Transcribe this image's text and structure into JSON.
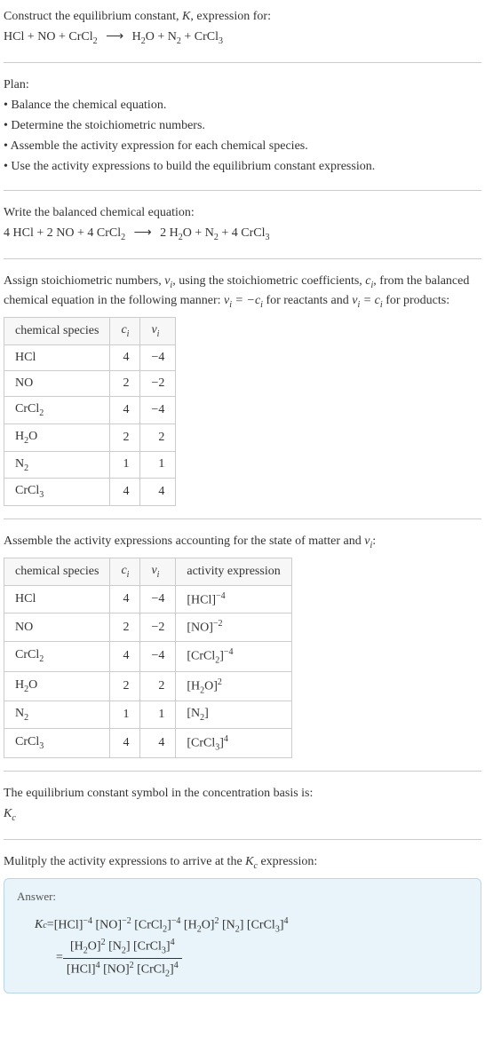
{
  "intro": {
    "title_line1": "Construct the equilibrium constant, ",
    "title_k": "K",
    "title_line1b": ", expression for:",
    "equation_lhs": "HCl + NO + CrCl",
    "equation_lhs_sub": "2",
    "equation_rhs_a": "H",
    "equation_rhs_a_sub": "2",
    "equation_rhs_b": "O + N",
    "equation_rhs_b_sub": "2",
    "equation_rhs_c": " + CrCl",
    "equation_rhs_c_sub": "3"
  },
  "plan": {
    "heading": "Plan:",
    "bullets": [
      "• Balance the chemical equation.",
      "• Determine the stoichiometric numbers.",
      "• Assemble the activity expression for each chemical species.",
      "• Use the activity expressions to build the equilibrium constant expression."
    ]
  },
  "balanced": {
    "heading": "Write the balanced chemical equation:",
    "lhs_a": "4 HCl + 2 NO + 4 CrCl",
    "lhs_sub": "2",
    "rhs_a": "2 H",
    "rhs_a_sub": "2",
    "rhs_b": "O + N",
    "rhs_b_sub": "2",
    "rhs_c": " + 4 CrCl",
    "rhs_c_sub": "3"
  },
  "stoich": {
    "text_a": "Assign stoichiometric numbers, ",
    "nu": "ν",
    "sub_i": "i",
    "text_b": ", using the stoichiometric coefficients, ",
    "c": "c",
    "text_c": ", from the balanced chemical equation in the following manner: ",
    "eq1_l": "ν",
    "eq1_r": " = −c",
    "text_d": " for reactants and ",
    "eq2_l": "ν",
    "eq2_r": " = c",
    "text_e": " for products:",
    "table": {
      "headers": [
        "chemical species",
        "c",
        "ν"
      ],
      "header_sub": "i",
      "rows": [
        {
          "species": "HCl",
          "species_sub": "",
          "c": "4",
          "nu": "−4"
        },
        {
          "species": "NO",
          "species_sub": "",
          "c": "2",
          "nu": "−2"
        },
        {
          "species": "CrCl",
          "species_sub": "2",
          "c": "4",
          "nu": "−4"
        },
        {
          "species": "H",
          "species_sub": "2",
          "species_b": "O",
          "c": "2",
          "nu": "2"
        },
        {
          "species": "N",
          "species_sub": "2",
          "c": "1",
          "nu": "1"
        },
        {
          "species": "CrCl",
          "species_sub": "3",
          "c": "4",
          "nu": "4"
        }
      ]
    }
  },
  "activity": {
    "text_a": "Assemble the activity expressions accounting for the state of matter and ",
    "nu": "ν",
    "sub_i": "i",
    "text_b": ":",
    "table": {
      "headers": [
        "chemical species",
        "c",
        "ν",
        "activity expression"
      ],
      "header_sub": "i",
      "rows": [
        {
          "species": "HCl",
          "species_sub": "",
          "c": "4",
          "nu": "−4",
          "act": "[HCl]",
          "act_sup": "−4"
        },
        {
          "species": "NO",
          "species_sub": "",
          "c": "2",
          "nu": "−2",
          "act": "[NO]",
          "act_sup": "−2"
        },
        {
          "species": "CrCl",
          "species_sub": "2",
          "c": "4",
          "nu": "−4",
          "act": "[CrCl",
          "act_sub": "2",
          "act_b": "]",
          "act_sup": "−4"
        },
        {
          "species": "H",
          "species_sub": "2",
          "species_b": "O",
          "c": "2",
          "nu": "2",
          "act": "[H",
          "act_sub": "2",
          "act_b": "O]",
          "act_sup": "2"
        },
        {
          "species": "N",
          "species_sub": "2",
          "c": "1",
          "nu": "1",
          "act": "[N",
          "act_sub": "2",
          "act_b": "]",
          "act_sup": ""
        },
        {
          "species": "CrCl",
          "species_sub": "3",
          "c": "4",
          "nu": "4",
          "act": "[CrCl",
          "act_sub": "3",
          "act_b": "]",
          "act_sup": "4"
        }
      ]
    }
  },
  "symbol": {
    "text": "The equilibrium constant symbol in the concentration basis is:",
    "kc": "K",
    "kc_sub": "c"
  },
  "multiply": {
    "text_a": "Mulitply the activity expressions to arrive at the ",
    "kc": "K",
    "kc_sub": "c",
    "text_b": " expression:"
  },
  "answer": {
    "label": "Answer:",
    "kc": "K",
    "kc_sub": "c",
    "eq": " = ",
    "flat": {
      "p1": "[HCl]",
      "s1": "−4",
      "p2": " [NO]",
      "s2": "−2",
      "p3": " [CrCl",
      "p3sub": "2",
      "p3b": "]",
      "s3": "−4",
      "p4": " [H",
      "p4sub": "2",
      "p4b": "O]",
      "s4": "2",
      "p5": " [N",
      "p5sub": "2",
      "p5b": "]",
      "p6": " [CrCl",
      "p6sub": "3",
      "p6b": "]",
      "s6": "4"
    },
    "frac": {
      "num_a": "[H",
      "num_a_sub": "2",
      "num_a_b": "O]",
      "num_a_sup": "2",
      "num_b": " [N",
      "num_b_sub": "2",
      "num_b_b": "]",
      "num_c": " [CrCl",
      "num_c_sub": "3",
      "num_c_b": "]",
      "num_c_sup": "4",
      "den_a": "[HCl]",
      "den_a_sup": "4",
      "den_b": " [NO]",
      "den_b_sup": "2",
      "den_c": " [CrCl",
      "den_c_sub": "2",
      "den_c_b": "]",
      "den_c_sup": "4"
    }
  },
  "colors": {
    "border": "#ccc",
    "answer_bg": "#e8f4f9",
    "answer_border": "#b8d8e8"
  }
}
